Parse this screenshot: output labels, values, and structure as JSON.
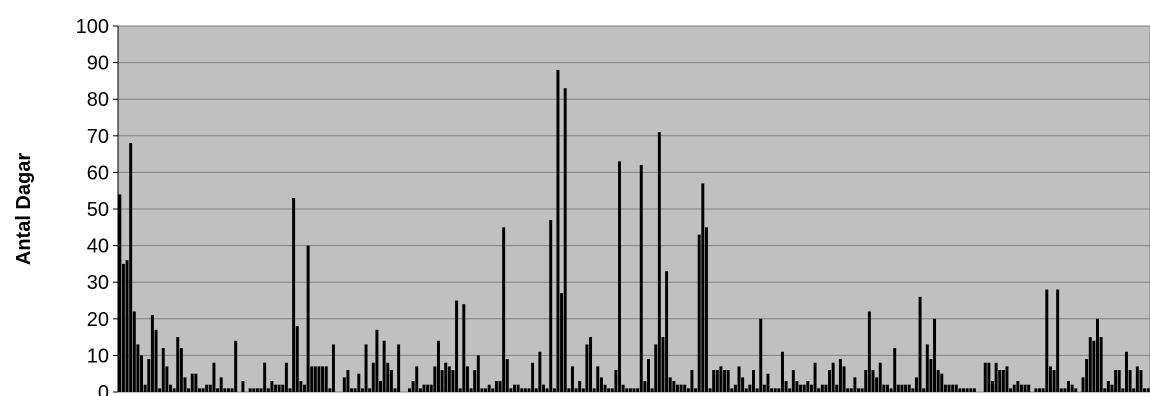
{
  "chart_data": {
    "type": "bar",
    "title": "",
    "xlabel": "",
    "ylabel": "Antal Dagar",
    "ylim": [
      0,
      100
    ],
    "yticks": [
      0,
      10,
      20,
      30,
      40,
      50,
      60,
      70,
      80,
      90,
      100
    ],
    "grid": true,
    "legend": "none",
    "colors": {
      "plot_background": "#c0c0c0",
      "bar": "#000000",
      "gridline": "#808080",
      "axis": "#000000"
    },
    "values": [
      54,
      35,
      36,
      68,
      22,
      13,
      10,
      2,
      9,
      21,
      17,
      1,
      12,
      7,
      2,
      1,
      15,
      12,
      4,
      1,
      5,
      5,
      1,
      1,
      2,
      2,
      8,
      1,
      4,
      1,
      1,
      1,
      14,
      0,
      3,
      0,
      1,
      1,
      1,
      1,
      8,
      1,
      3,
      2,
      2,
      2,
      8,
      1,
      53,
      18,
      3,
      2,
      40,
      7,
      7,
      7,
      7,
      7,
      1,
      13,
      0,
      0,
      4,
      6,
      1,
      1,
      5,
      1,
      13,
      1,
      8,
      17,
      3,
      14,
      8,
      6,
      1,
      13,
      0,
      0,
      1,
      3,
      7,
      1,
      2,
      2,
      2,
      7,
      14,
      6,
      8,
      7,
      6,
      25,
      1,
      24,
      7,
      1,
      6,
      10,
      1,
      1,
      2,
      1,
      3,
      3,
      45,
      9,
      1,
      2,
      2,
      1,
      1,
      1,
      8,
      1,
      11,
      2,
      1,
      47,
      1,
      88,
      27,
      83,
      1,
      7,
      1,
      3,
      1,
      13,
      15,
      1,
      7,
      4,
      2,
      1,
      1,
      6,
      63,
      2,
      1,
      1,
      1,
      1,
      62,
      3,
      9,
      1,
      13,
      71,
      15,
      33,
      4,
      3,
      2,
      2,
      2,
      1,
      6,
      1,
      43,
      57,
      45,
      1,
      6,
      6,
      7,
      6,
      6,
      1,
      2,
      7,
      4,
      1,
      2,
      6,
      1,
      20,
      2,
      5,
      1,
      1,
      1,
      11,
      3,
      1,
      6,
      3,
      2,
      2,
      3,
      2,
      8,
      1,
      2,
      2,
      6,
      8,
      2,
      9,
      7,
      1,
      1,
      4,
      1,
      1,
      6,
      22,
      6,
      4,
      8,
      2,
      2,
      1,
      12,
      2,
      2,
      2,
      2,
      1,
      4,
      26,
      1,
      13,
      9,
      20,
      6,
      5,
      2,
      2,
      2,
      2,
      1,
      1,
      1,
      1,
      1,
      0,
      0,
      8,
      8,
      3,
      8,
      6,
      6,
      7,
      1,
      2,
      3,
      2,
      2,
      2,
      0,
      1,
      1,
      1,
      28,
      7,
      6,
      28,
      1,
      1,
      3,
      2,
      1,
      0,
      4,
      9,
      15,
      14,
      20,
      15,
      1,
      3,
      2,
      6,
      6,
      1,
      11,
      6,
      1,
      7,
      6,
      1,
      1
    ]
  }
}
